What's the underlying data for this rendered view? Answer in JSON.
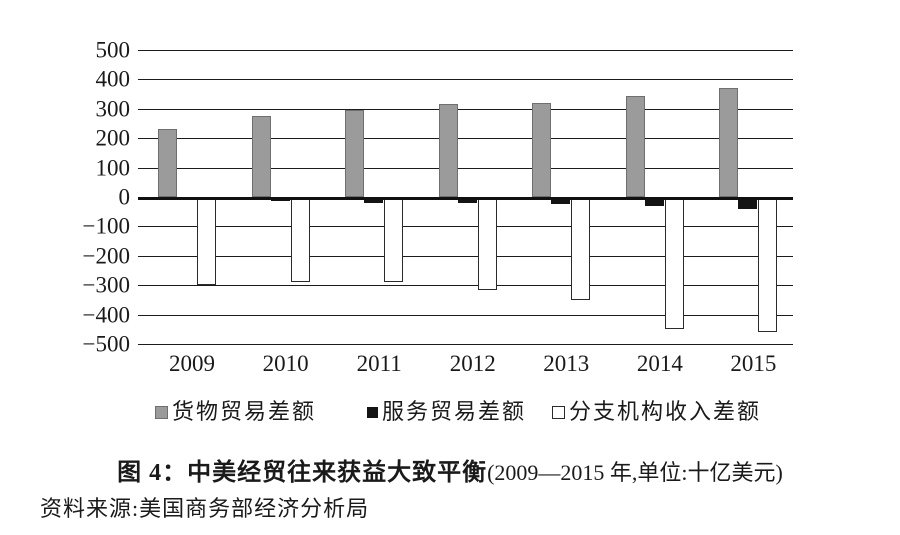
{
  "figure": {
    "title_prefix": "图 4：",
    "title_main": "中美经贸往来获益大致平衡",
    "title_paren": "(2009—2015 年,单位:十亿美元)",
    "source": "资料来源:美国商务部经济分析局"
  },
  "colors": {
    "goods_bar": "#9b9b9b",
    "services_bar": "#141414",
    "branch_bar_fill": "#ffffff",
    "branch_bar_border": "#2b2b2b",
    "gridline": "#1c1c1c",
    "text": "#1a1a1a",
    "background": "#ffffff"
  },
  "chart_data": {
    "type": "bar",
    "title": "图 4：中美经贸往来获益大致平衡(2009—2015 年,单位:十亿美元)",
    "xlabel": "",
    "ylabel": "",
    "unit": "十亿美元",
    "categories": [
      "2009",
      "2010",
      "2011",
      "2012",
      "2013",
      "2014",
      "2015"
    ],
    "series": [
      {
        "name": "货物贸易差额",
        "key": "goods-trade-balance",
        "color": "#9b9b9b",
        "values": [
          230,
          275,
          295,
          315,
          320,
          345,
          370
        ]
      },
      {
        "name": "服务贸易差额",
        "key": "services-trade-balance",
        "color": "#141414",
        "values": [
          -10,
          -15,
          -20,
          -20,
          -25,
          -30,
          -40
        ]
      },
      {
        "name": "分支机构收入差额",
        "key": "branch-income-balance",
        "color": "#ffffff",
        "values": [
          -300,
          -290,
          -290,
          -315,
          -350,
          -450,
          -460
        ]
      }
    ],
    "ylim": [
      -500,
      500
    ],
    "ytick_interval": 100,
    "yticks": [
      500,
      400,
      300,
      200,
      100,
      0,
      -100,
      -200,
      -300,
      -400,
      -500
    ],
    "grid": true,
    "legend_position": "bottom"
  }
}
